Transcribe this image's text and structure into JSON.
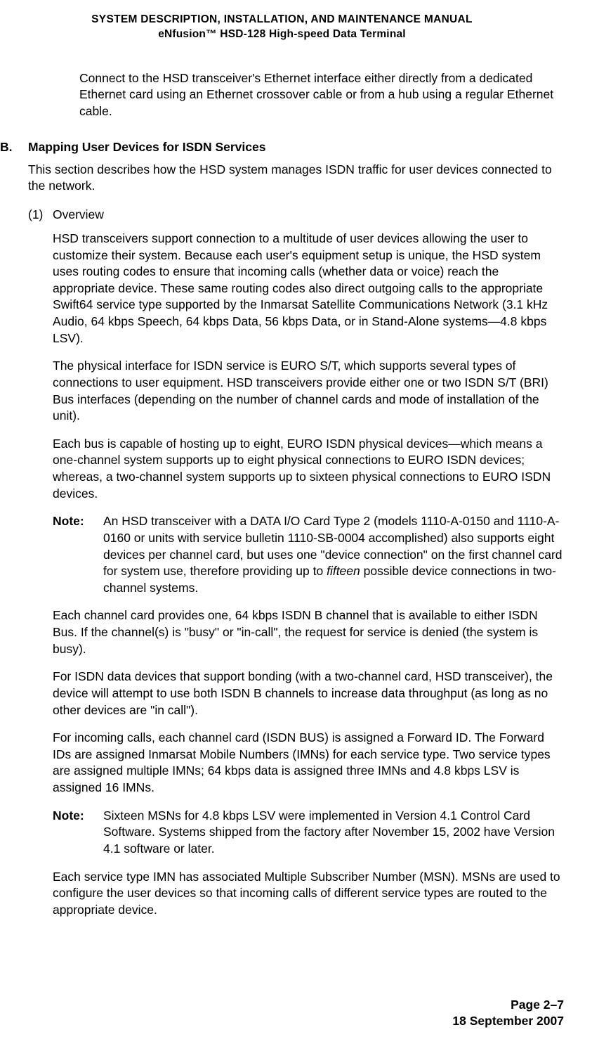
{
  "header": {
    "line1": "SYSTEM DESCRIPTION, INSTALLATION, AND MAINTENANCE MANUAL",
    "line2": "eNfusion™ HSD-128 High-speed Data Terminal"
  },
  "intro_para": "Connect to the HSD transceiver's Ethernet interface either directly from a dedicated Ethernet card using an Ethernet crossover cable or from a hub using a regular Ethernet cable.",
  "section": {
    "letter": "B.",
    "heading": "Mapping User Devices for ISDN Services",
    "intro": "This section describes how the HSD system manages ISDN traffic for user devices connected to the network."
  },
  "subsection": {
    "number": "(1)",
    "heading": "Overview",
    "paras": [
      "HSD transceivers support connection to a multitude of user devices allowing the user to customize their system. Because each user's equipment setup is unique, the HSD system uses routing codes to ensure that incoming calls (whether data or voice) reach the appropriate device. These same routing codes also direct outgoing calls to the appropriate Swift64 service type supported by the Inmarsat Satellite Communications Network (3.1 kHz Audio, 64 kbps Speech, 64 kbps Data, 56 kbps Data, or in Stand-Alone systems—4.8 kbps LSV).",
      "The physical interface for ISDN service is EURO S/T, which supports several types of connections to user equipment. HSD transceivers provide either one or two ISDN S/T (BRI) Bus interfaces (depending on the number of channel cards and mode of installation of the unit).",
      "Each bus is capable of hosting up to eight, EURO ISDN physical devices—which means a one-channel system supports up to eight physical connections to EURO ISDN devices; whereas, a two-channel system supports up to sixteen physical connections to EURO ISDN devices."
    ],
    "note1": {
      "label": "Note:",
      "content_pre": "An HSD transceiver with a DATA I/O Card Type 2 (models 1110-A-0150 and 1110-A-0160 or units with service bulletin 1110-SB-0004 accomplished) also supports eight devices per channel card, but uses one \"device connection\" on the first channel card for system use, therefore providing up to ",
      "content_italic": "fifteen",
      "content_post": " possible device connections in two-channel systems."
    },
    "paras2": [
      "Each channel card provides one, 64 kbps ISDN B channel that is available to either ISDN Bus. If the channel(s) is \"busy\" or \"in-call\", the request for service is denied (the system is busy).",
      "For ISDN data devices that support bonding (with a two-channel card, HSD transceiver), the device will attempt to use both ISDN B channels to increase data throughput (as long as no other devices are \"in call\").",
      "For incoming calls, each channel card (ISDN BUS) is assigned a Forward ID. The Forward IDs are assigned Inmarsat Mobile Numbers (IMNs) for each service type. Two service types are assigned multiple IMNs; 64 kbps data is assigned three IMNs and 4.8 kbps LSV is assigned 16 IMNs."
    ],
    "note2": {
      "label": "Note:",
      "content": "Sixteen MSNs for 4.8 kbps LSV were implemented in Version 4.1 Control Card Software. Systems shipped from the factory after November 15, 2002 have Version 4.1 software or later."
    },
    "paras3": [
      "Each service type IMN has associated Multiple Subscriber Number (MSN). MSNs are used to configure the user devices so that incoming calls of different service types are routed to the appropriate device."
    ]
  },
  "footer": {
    "page": "Page 2–7",
    "date": "18 September 2007"
  }
}
